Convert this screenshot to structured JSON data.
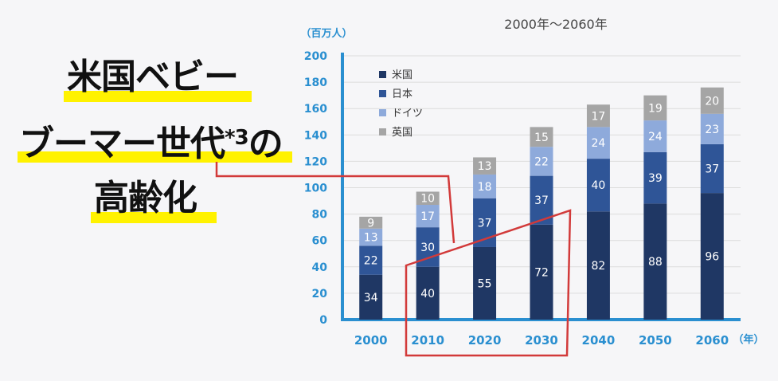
{
  "headline": {
    "line1": "米国ベビー",
    "line2_main": "ブーマー世代",
    "line2_sup": "*3",
    "line2_tail": "の",
    "line3": "高齢化"
  },
  "colors": {
    "us": "#1f3764",
    "japan": "#2f5597",
    "germany": "#8eaadb",
    "uk": "#a5a5a5",
    "axis_text": "#2a8fd0",
    "highlight": "#fff200",
    "annotation": "#d23a3a"
  },
  "chart_data": {
    "type": "bar",
    "stacked": true,
    "title": "2000年～2060年",
    "ylabel": "（百万人）",
    "xlabel": "（年）",
    "categories": [
      "2000",
      "2010",
      "2020",
      "2030",
      "2040",
      "2050",
      "2060"
    ],
    "ylim": [
      0,
      200
    ],
    "yticks": [
      0,
      20,
      40,
      60,
      80,
      100,
      120,
      140,
      160,
      180,
      200
    ],
    "grid": true,
    "legend_position": "top-left",
    "series": [
      {
        "name": "米国",
        "color": "#1f3764",
        "values": [
          34,
          40,
          55,
          72,
          82,
          88,
          96
        ]
      },
      {
        "name": "日本",
        "color": "#2f5597",
        "values": [
          22,
          30,
          37,
          37,
          40,
          39,
          37
        ]
      },
      {
        "name": "ドイツ",
        "color": "#8eaadb",
        "values": [
          13,
          17,
          18,
          22,
          24,
          24,
          23
        ]
      },
      {
        "name": "英国",
        "color": "#a5a5a5",
        "values": [
          9,
          10,
          13,
          15,
          17,
          19,
          20
        ]
      }
    ]
  }
}
